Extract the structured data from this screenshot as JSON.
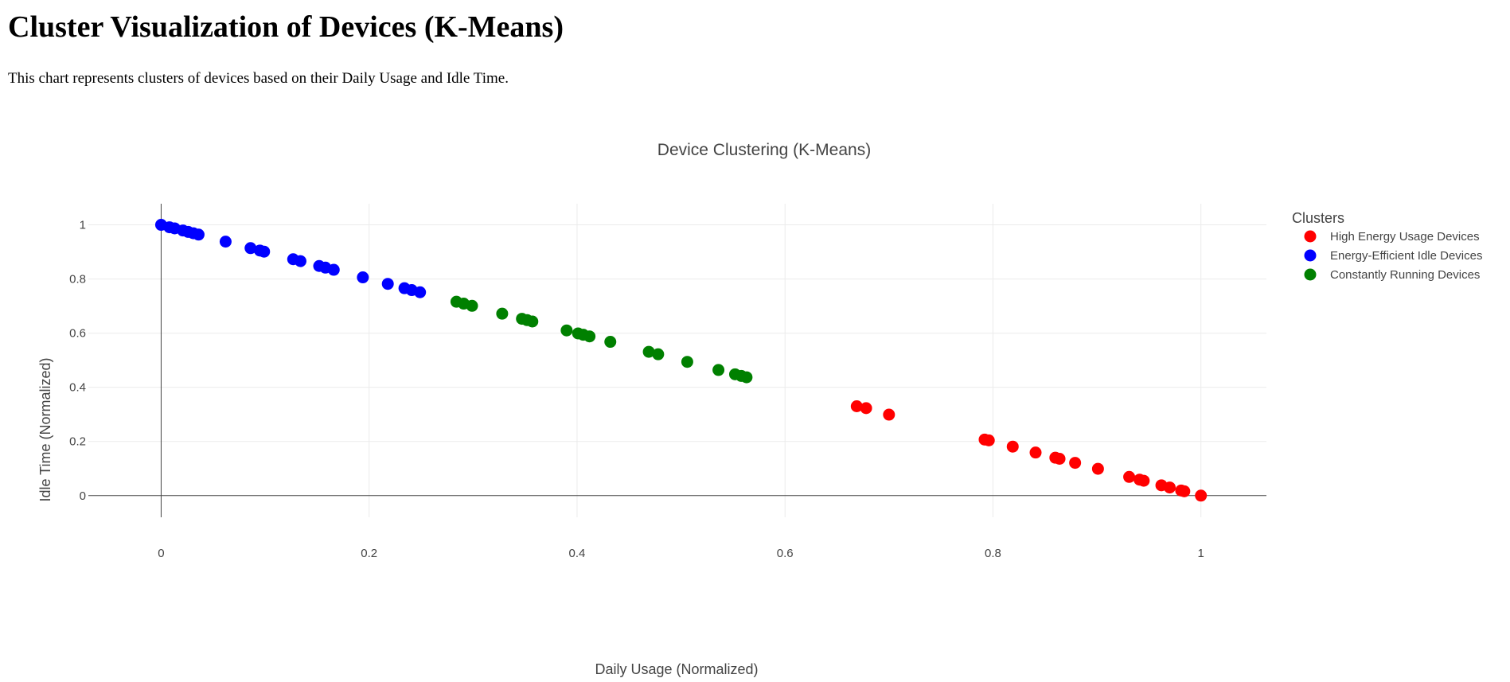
{
  "page": {
    "title": "Cluster Visualization of Devices (K-Means)",
    "description": "This chart represents clusters of devices based on their Daily Usage and Idle Time."
  },
  "chart_data": {
    "type": "scatter",
    "title": "Device Clustering (K-Means)",
    "xlabel": "Daily Usage (Normalized)",
    "ylabel": "Idle Time (Normalized)",
    "xlim": [
      -0.07,
      1.063
    ],
    "ylim": [
      -0.08,
      1.078
    ],
    "xticks": [
      0,
      0.2,
      0.4,
      0.6,
      0.8,
      1
    ],
    "xtick_labels": [
      "0",
      "0.2",
      "0.4",
      "0.6",
      "0.8",
      "1"
    ],
    "yticks": [
      0,
      0.2,
      0.4,
      0.6,
      0.8,
      1
    ],
    "ytick_labels": [
      "0",
      "0.2",
      "0.4",
      "0.6",
      "0.8",
      "1"
    ],
    "grid": true,
    "legend": {
      "title": "Clusters",
      "placement": "top-right, outside plot"
    },
    "series": [
      {
        "name": "High Energy Usage Devices",
        "color": "#ff0000",
        "points": [
          [
            0.669,
            0.33
          ],
          [
            0.678,
            0.323
          ],
          [
            0.7,
            0.299
          ],
          [
            0.792,
            0.207
          ],
          [
            0.796,
            0.204
          ],
          [
            0.819,
            0.181
          ],
          [
            0.841,
            0.159
          ],
          [
            0.86,
            0.14
          ],
          [
            0.864,
            0.136
          ],
          [
            0.879,
            0.121
          ],
          [
            0.901,
            0.099
          ],
          [
            0.931,
            0.069
          ],
          [
            0.941,
            0.059
          ],
          [
            0.945,
            0.055
          ],
          [
            0.962,
            0.038
          ],
          [
            0.97,
            0.03
          ],
          [
            0.981,
            0.019
          ],
          [
            0.984,
            0.016
          ],
          [
            1.0,
            0.0
          ]
        ]
      },
      {
        "name": "Energy-Efficient Idle Devices",
        "color": "#0000ff",
        "points": [
          [
            0.0,
            1.0
          ],
          [
            0.008,
            0.991
          ],
          [
            0.013,
            0.987
          ],
          [
            0.021,
            0.979
          ],
          [
            0.026,
            0.974
          ],
          [
            0.031,
            0.969
          ],
          [
            0.036,
            0.964
          ],
          [
            0.062,
            0.938
          ],
          [
            0.086,
            0.914
          ],
          [
            0.095,
            0.905
          ],
          [
            0.099,
            0.901
          ],
          [
            0.127,
            0.873
          ],
          [
            0.134,
            0.866
          ],
          [
            0.152,
            0.848
          ],
          [
            0.158,
            0.842
          ],
          [
            0.166,
            0.834
          ],
          [
            0.194,
            0.806
          ],
          [
            0.218,
            0.782
          ],
          [
            0.234,
            0.766
          ],
          [
            0.241,
            0.759
          ],
          [
            0.249,
            0.751
          ]
        ]
      },
      {
        "name": "Constantly Running Devices",
        "color": "#008000",
        "points": [
          [
            0.284,
            0.716
          ],
          [
            0.291,
            0.709
          ],
          [
            0.299,
            0.701
          ],
          [
            0.328,
            0.672
          ],
          [
            0.347,
            0.653
          ],
          [
            0.352,
            0.648
          ],
          [
            0.357,
            0.643
          ],
          [
            0.39,
            0.61
          ],
          [
            0.401,
            0.599
          ],
          [
            0.406,
            0.594
          ],
          [
            0.412,
            0.588
          ],
          [
            0.432,
            0.568
          ],
          [
            0.469,
            0.531
          ],
          [
            0.478,
            0.522
          ],
          [
            0.506,
            0.494
          ],
          [
            0.536,
            0.464
          ],
          [
            0.552,
            0.448
          ],
          [
            0.558,
            0.442
          ],
          [
            0.563,
            0.437
          ]
        ]
      }
    ]
  }
}
